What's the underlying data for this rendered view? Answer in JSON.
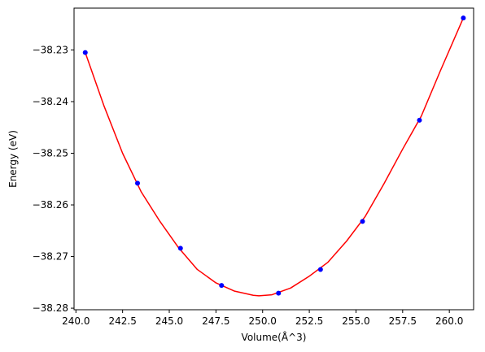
{
  "chart_data": {
    "type": "scatter",
    "xlabel": "Volume(Å^3)",
    "ylabel": "Energy (eV)",
    "xlim": [
      239.9,
      261.3
    ],
    "ylim": [
      -38.2803,
      -38.2219
    ],
    "grid": false,
    "x_ticks": [
      240.0,
      242.5,
      245.0,
      247.5,
      250.0,
      252.5,
      255.0,
      257.5,
      260.0
    ],
    "x_tick_labels": [
      "240.0",
      "242.5",
      "245.0",
      "247.5",
      "250.0",
      "252.5",
      "255.0",
      "257.5",
      "260.0"
    ],
    "y_ticks": [
      -38.28,
      -38.27,
      -38.26,
      -38.25,
      -38.24,
      -38.23
    ],
    "y_tick_labels": [
      "−38.28",
      "−38.27",
      "−38.26",
      "−38.25",
      "−38.24",
      "−38.23"
    ],
    "series": [
      {
        "kind": "points",
        "color": "#0000ff",
        "x": [
          240.5,
          243.3,
          245.6,
          247.8,
          250.85,
          253.1,
          255.35,
          258.4,
          260.75
        ],
        "y": [
          -38.2305,
          -38.2558,
          -38.2684,
          -38.2756,
          -38.2771,
          -38.2725,
          -38.2632,
          -38.2436,
          -38.2238
        ]
      },
      {
        "kind": "fit-curve",
        "color": "#ff0000",
        "x": [
          240.5,
          241.5,
          242.5,
          243.5,
          244.5,
          245.5,
          246.5,
          247.5,
          248.5,
          249.5,
          249.8,
          250.5,
          251.5,
          252.5,
          253.5,
          254.5,
          255.5,
          256.5,
          257.5,
          258.5,
          259.5,
          260.75
        ],
        "y": [
          -38.2305,
          -38.2408,
          -38.25,
          -38.2575,
          -38.2632,
          -38.2683,
          -38.2725,
          -38.2751,
          -38.2767,
          -38.2775,
          -38.2776,
          -38.2774,
          -38.2761,
          -38.2738,
          -38.2711,
          -38.267,
          -38.2622,
          -38.2559,
          -38.2492,
          -38.2428,
          -38.2342,
          -38.2238
        ]
      }
    ]
  }
}
